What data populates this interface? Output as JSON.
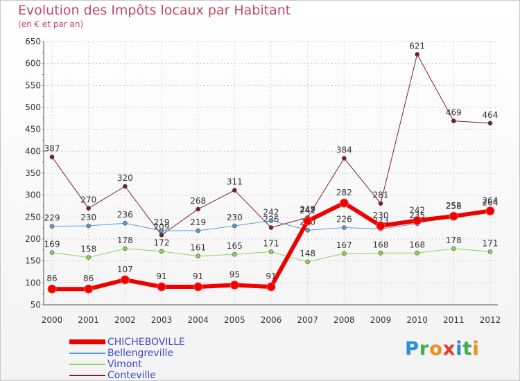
{
  "header": {
    "title": "Evolution des Impôts locaux par Habitant",
    "subtitle": "(en € et par an)"
  },
  "logo": {
    "letters": [
      "P",
      "r",
      "o",
      "x",
      "i",
      "t",
      "i"
    ],
    "colors": [
      "#2a8fd6",
      "#3cb34a",
      "#f28c1e",
      "#e23b3b",
      "#2a8fd6",
      "#3cb34a",
      "#f28c1e"
    ]
  },
  "chart_data": {
    "type": "line",
    "title": "Evolution des Impôts locaux par Habitant",
    "subtitle": "(en € et par an)",
    "xlabel": "",
    "ylabel": "",
    "x": [
      "2000",
      "2001",
      "2002",
      "2003",
      "2004",
      "2005",
      "2006",
      "2007",
      "2008",
      "2009",
      "2010",
      "2011",
      "2012"
    ],
    "ylim": [
      50,
      650
    ],
    "yticks": [
      50,
      100,
      150,
      200,
      250,
      300,
      350,
      400,
      450,
      500,
      550,
      600,
      650
    ],
    "grid": true,
    "legend_position": "bottom-left",
    "series": [
      {
        "name": "Conteville",
        "color": "#7a1f2b",
        "width": 1,
        "values": [
          387,
          270,
          320,
          209,
          268,
          311,
          226,
          249,
          384,
          281,
          621,
          469,
          464
        ]
      },
      {
        "name": "Vimont",
        "color": "#8ad35a",
        "width": 1,
        "values": [
          169,
          158,
          178,
          172,
          161,
          165,
          171,
          148,
          167,
          168,
          168,
          178,
          171
        ]
      },
      {
        "name": "Bellengreville",
        "color": "#5b9bd5",
        "width": 1,
        "values": [
          229,
          230,
          236,
          219,
          219,
          230,
          242,
          220,
          226,
          223,
          235,
          256,
          264
        ]
      },
      {
        "name": "CHICHEBOVILLE",
        "color": "#ee0000",
        "width": 6,
        "values": [
          86,
          86,
          107,
          91,
          91,
          95,
          91,
          241,
          282,
          230,
          242,
          252,
          264
        ]
      }
    ],
    "legend_order": [
      "CHICHEBOVILLE",
      "Bellengreville",
      "Vimont",
      "Conteville"
    ]
  }
}
